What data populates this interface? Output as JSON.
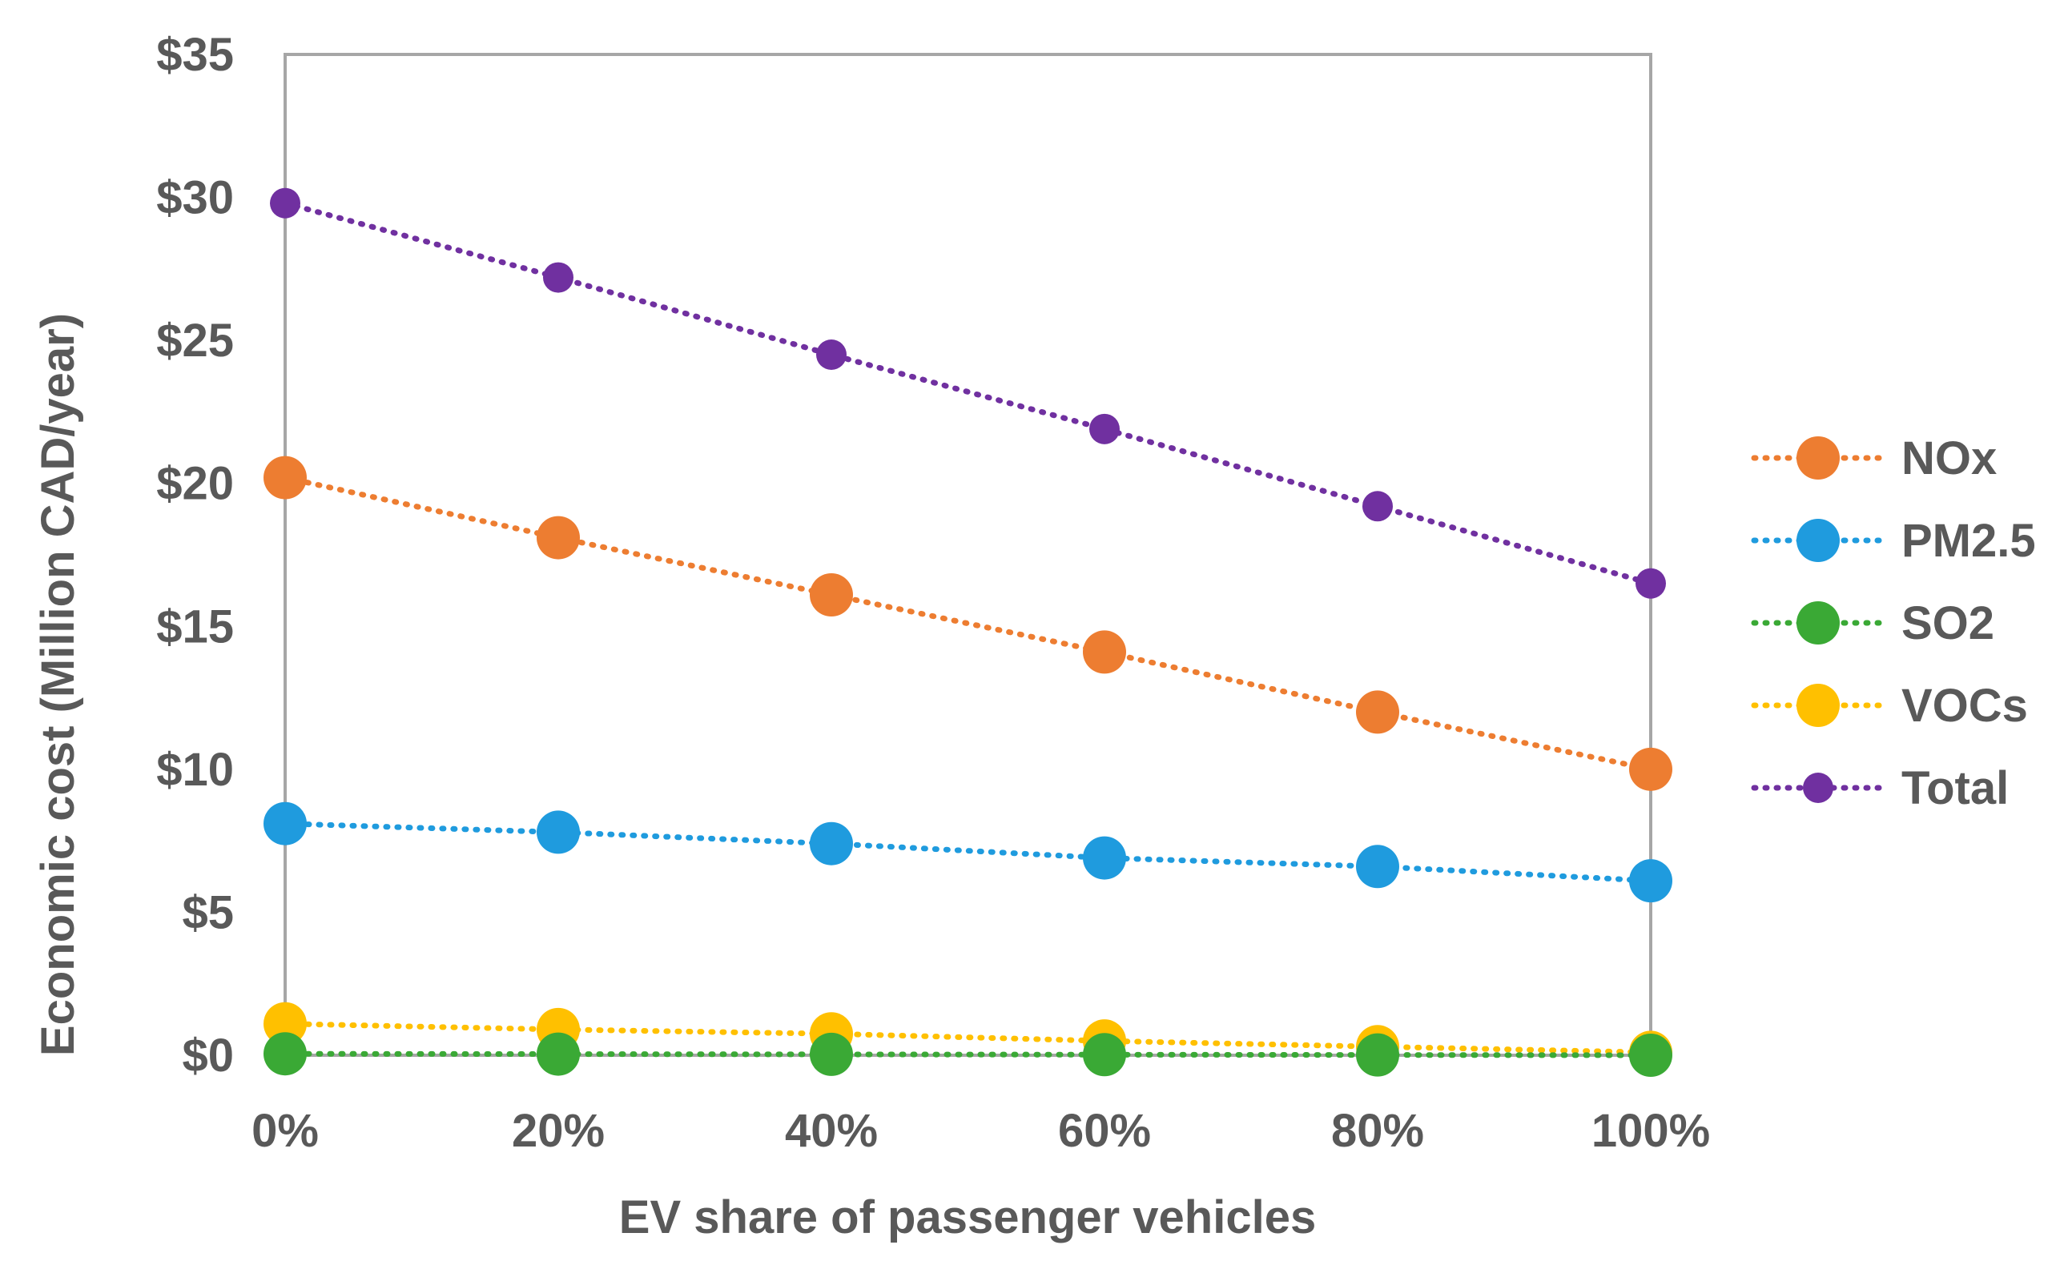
{
  "chart_data": {
    "type": "line",
    "title": "",
    "xlabel": "EV share of passenger vehicles",
    "ylabel": "Economic cost (Million CAD/year)",
    "categories": [
      "0%",
      "20%",
      "40%",
      "60%",
      "80%",
      "100%"
    ],
    "yticks": [
      "$0",
      "$5",
      "$10",
      "$15",
      "$20",
      "$25",
      "$30",
      "$35"
    ],
    "ylim": [
      0,
      35
    ],
    "grid": false,
    "legend_position": "right",
    "line_style": "dotted",
    "series": [
      {
        "name": "NOx",
        "color": "#ED7D31",
        "values": [
          20.2,
          18.1,
          16.1,
          14.1,
          12.0,
          10.0
        ]
      },
      {
        "name": "PM2.5",
        "color": "#1F9BDE",
        "values": [
          8.1,
          7.8,
          7.4,
          6.9,
          6.6,
          6.1
        ]
      },
      {
        "name": "SO2",
        "color": "#3AA935",
        "values": [
          0.05,
          0.04,
          0.03,
          0.02,
          0.01,
          0.0
        ]
      },
      {
        "name": "VOCs",
        "color": "#FFC000",
        "values": [
          1.1,
          0.9,
          0.75,
          0.5,
          0.3,
          0.1
        ]
      },
      {
        "name": "Total",
        "color": "#7030A0",
        "values": [
          29.8,
          27.2,
          24.5,
          21.9,
          19.2,
          16.5
        ]
      }
    ]
  }
}
